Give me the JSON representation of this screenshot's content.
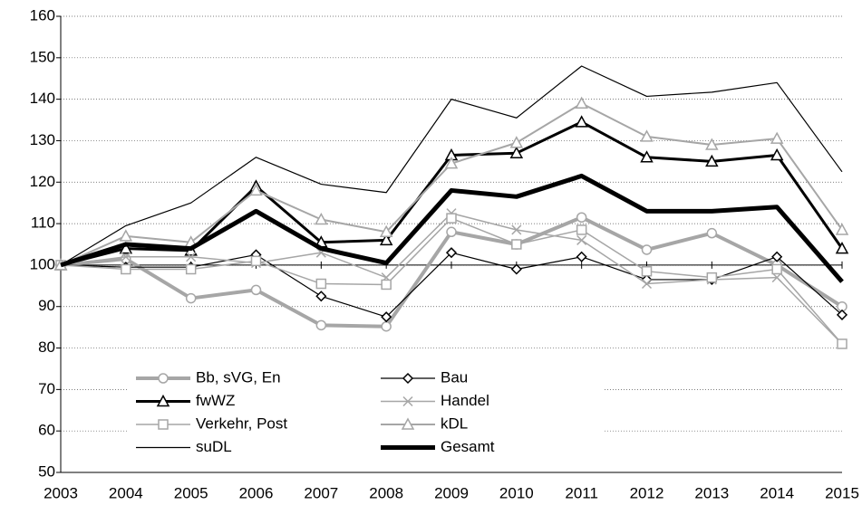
{
  "chart_data": {
    "type": "line",
    "x": [
      2003,
      2004,
      2005,
      2006,
      2007,
      2008,
      2009,
      2010,
      2011,
      2012,
      2013,
      2014,
      2015
    ],
    "xlim": [
      2003,
      2015
    ],
    "xticks": [
      2003,
      2004,
      2005,
      2006,
      2007,
      2008,
      2009,
      2010,
      2011,
      2012,
      2013,
      2014,
      2015
    ],
    "ylim": [
      50,
      160
    ],
    "yticks": [
      50,
      60,
      70,
      80,
      90,
      100,
      110,
      120,
      130,
      140,
      150,
      160
    ],
    "grid": true,
    "x_axis_crosses": 100,
    "legend": "lower left",
    "series": [
      {
        "name": "Bb, sVG, En",
        "color": "#a6a6a6",
        "width": 4,
        "marker": "circle",
        "values": [
          100,
          101.5,
          92,
          94,
          85.5,
          85.2,
          108,
          105,
          111.5,
          103.7,
          107.7,
          100,
          90
        ]
      },
      {
        "name": "Bau",
        "color": "#000000",
        "width": 1.2,
        "marker": "diamond",
        "values": [
          100,
          99.5,
          99.5,
          102.5,
          92.5,
          87.5,
          103,
          99,
          102,
          96.5,
          96.5,
          102,
          88
        ]
      },
      {
        "name": "fwWZ",
        "color": "#000000",
        "width": 3,
        "marker": "triangle",
        "values": [
          100,
          104,
          103.5,
          119,
          105.5,
          106,
          126.5,
          127,
          134.5,
          126,
          125,
          126.5,
          104
        ]
      },
      {
        "name": "Handel",
        "color": "#a6a6a6",
        "width": 1.5,
        "marker": "x",
        "values": [
          100,
          102,
          102,
          100.5,
          103,
          97,
          112.5,
          108.5,
          106,
          95.5,
          96.5,
          97,
          81
        ]
      },
      {
        "name": "Verkehr, Post",
        "color": "#a6a6a6",
        "width": 1.5,
        "marker": "square",
        "values": [
          100,
          99,
          99,
          101,
          95.5,
          95.3,
          111.3,
          105,
          108.5,
          98.5,
          97,
          99,
          81
        ]
      },
      {
        "name": "kDL",
        "color": "#a6a6a6",
        "width": 2,
        "marker": "triangle",
        "values": [
          100,
          107,
          105.5,
          118,
          111,
          108,
          124.5,
          129.5,
          139,
          131,
          129,
          130.5,
          108.5
        ]
      },
      {
        "name": "suDL",
        "color": "#000000",
        "width": 1.2,
        "marker": "none",
        "values": [
          100,
          109.5,
          115,
          126,
          119.5,
          117.5,
          140,
          135.5,
          148,
          140.7,
          141.7,
          144,
          122.5
        ]
      },
      {
        "name": "Gesamt",
        "color": "#000000",
        "width": 5,
        "marker": "none",
        "values": [
          100,
          105,
          104,
          113,
          104,
          100.5,
          118,
          116.5,
          121.5,
          113,
          113,
          114,
          96
        ]
      }
    ]
  }
}
